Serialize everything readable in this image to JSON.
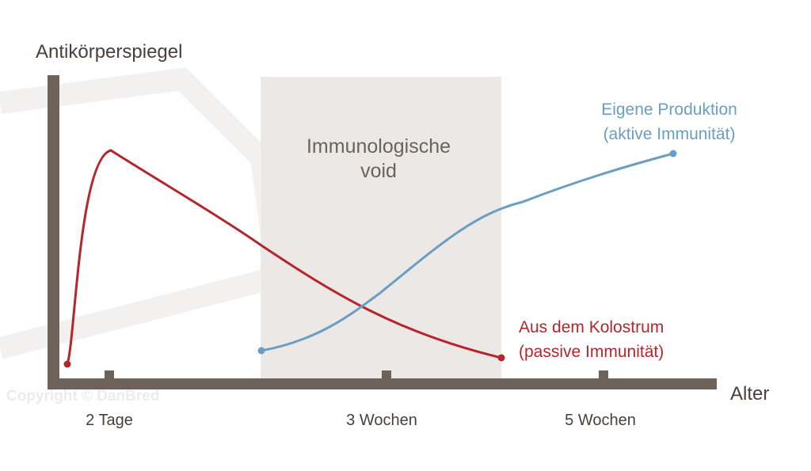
{
  "axes": {
    "y_label": "Antikörperspiegel",
    "x_label": "Alter",
    "x_ticks": [
      "2 Tage",
      "3 Wochen",
      "5 Wochen"
    ]
  },
  "void_box": {
    "lines": [
      "Immunologische",
      "void"
    ]
  },
  "curves": [
    {
      "lines": [
        "Eigene Produktion",
        "(aktive Immunität)"
      ]
    },
    {
      "lines": [
        "Aus dem Kolostrum",
        "(passive Immunität)"
      ]
    }
  ],
  "watermark": "Copyright © DanBred"
}
